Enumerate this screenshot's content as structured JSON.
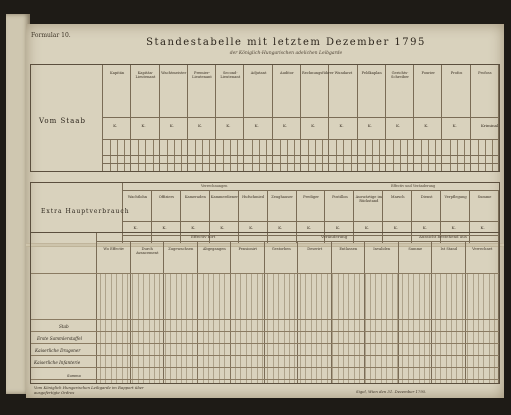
{
  "sheet": {
    "number": "Formular 10.",
    "title": "Standestabelle mit letztem Dezember 1795",
    "subtitle": "der Königlich-Hungarischen adelichen Leibgarde"
  },
  "section1": {
    "label": "Vom Staab",
    "headers": [
      "Kapitän",
      "Kapitän-Lieutenant",
      "Wachtmeister",
      "Premier-Lieutenant",
      "Second-Lieutenant",
      "Adjutant",
      "Auditor",
      "Rechnungsführer",
      "Wundarzt",
      "Feldkaplan",
      "Gerichts-Schreiber",
      "Fourier",
      "Profos",
      "Profoss"
    ],
    "row_marks": [
      "K.",
      "K.",
      "K.",
      "K.",
      "K.",
      "K.",
      "K.",
      "K.",
      "K.",
      "K.",
      "K.",
      "K.",
      "K.",
      "Kriminal"
    ]
  },
  "section2": {
    "label": "Extra Hauptverbrauch",
    "group1": "Verrechnungen",
    "group2": "Effectiv und Veränderung",
    "headers": [
      "Wachtlohn",
      "Offiziers",
      "Kameraden",
      "Kammerdiener",
      "Hufschmied",
      "Zeughauser",
      "Prediger",
      "Postillon",
      "Auswärtige im Rückstand",
      "Marsch",
      "Dienst",
      "Verpflegung",
      "Summe"
    ],
    "row_marks": [
      "K.",
      "K.",
      "K.",
      "K.",
      "K.",
      "K.",
      "K.",
      "K.",
      "K.",
      "K.",
      "K.",
      "K.",
      "K."
    ]
  },
  "section3": {
    "group_headers": [
      "Effectiv fort",
      "Veränderung",
      "Aussicht bestehend aus"
    ],
    "col_headers": [
      "Wo Effectiv",
      "Durch Avancement",
      "Zugewachsen",
      "Abgegangen",
      "Pensionirt",
      "Gestorben",
      "Deserirt",
      "Entlassen",
      "Invaliden",
      "Summe",
      "Ist Stand",
      "Verrechnet"
    ],
    "rows": [
      "Stab",
      "Erste Sammlerstaffel",
      "Kaiserliche Dragoner",
      "Kaiserliche Infanterie"
    ],
    "summary_label": "Summa",
    "footer_left": "Vom Königlich Hungarischen Leibgarde im Rapport über ausgefertigte Ordres",
    "footer_right": "Sigel, Wien den 31. Dezember 1795."
  }
}
